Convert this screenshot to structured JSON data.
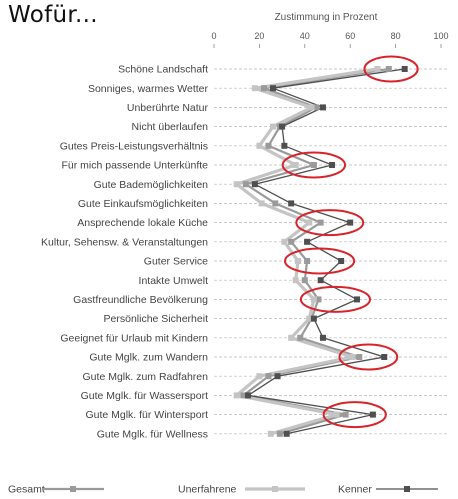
{
  "heading": "Wofür...",
  "chart_data": {
    "type": "line",
    "orientation": "horizontal",
    "title": "Zustimmung in Prozent",
    "xlim": [
      0,
      100
    ],
    "xticks": [
      0,
      20,
      40,
      60,
      80,
      100
    ],
    "grid": true,
    "legend_position": "bottom",
    "categories": [
      "Schöne Landschaft",
      "Sonniges, warmes Wetter",
      "Unberührte Natur",
      "Nicht überlaufen",
      "Gutes Preis-Leistungsverhältnis",
      "Für mich passende Unterkünfte",
      "Gute Bademöglichkeiten",
      "Gute Einkaufsmöglichkeiten",
      "Ansprechende lokale Küche",
      "Kultur, Sehensw. & Veranstaltungen",
      "Guter Service",
      "Intakte Umwelt",
      "Gastfreundliche Bevölkerung",
      "Persönliche Sicherheit",
      "Geeignet für Urlaub mit Kindern",
      "Gute Mglk. zum Wandern",
      "Gute Mglk. zum Radfahren",
      "Gute Mglk. für Wassersport",
      "Gute Mglk. für Wintersport",
      "Gute Mglk. für Wellness"
    ],
    "series": [
      {
        "name": "Gesamt",
        "color": "#9a9a9a",
        "values": [
          77,
          22,
          45,
          29,
          24,
          44,
          14,
          27,
          47,
          34,
          41,
          40,
          46,
          43,
          38,
          64,
          24,
          13,
          58,
          29
        ]
      },
      {
        "name": "Unerfahrene",
        "color": "#c4c4c4",
        "values": [
          72,
          18,
          43,
          26,
          20,
          36,
          10,
          21,
          42,
          31,
          37,
          36,
          44,
          42,
          34,
          61,
          20,
          10,
          54,
          25
        ]
      },
      {
        "name": "Kenner",
        "color": "#4f4f4f",
        "values": [
          84,
          26,
          48,
          30,
          31,
          52,
          18,
          34,
          60,
          41,
          56,
          47,
          63,
          44,
          48,
          75,
          28,
          15,
          70,
          32
        ]
      }
    ],
    "highlighted_categories": [
      "Schöne Landschaft",
      "Für mich passende Unterkünfte",
      "Ansprechende lokale Küche",
      "Guter Service",
      "Gastfreundliche Bevölkerung",
      "Gute Mglk. zum Wandern",
      "Gute Mglk. für Wintersport"
    ],
    "highlight_color": "#d9232b"
  }
}
